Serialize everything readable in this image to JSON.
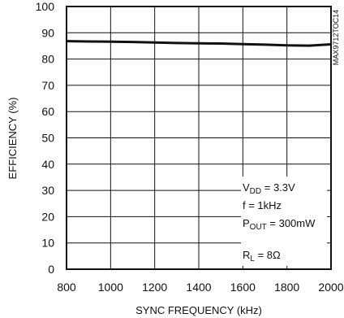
{
  "chart_data": {
    "type": "line",
    "title": "",
    "xlabel": "SYNC FREQUENCY (kHz)",
    "ylabel": "EFFICIENCY (%)",
    "xlim": [
      800,
      2000
    ],
    "ylim": [
      0,
      100
    ],
    "x_ticks": [
      "800",
      "1000",
      "1200",
      "1400",
      "1600",
      "1800",
      "2000"
    ],
    "y_ticks": [
      "0",
      "10",
      "20",
      "30",
      "40",
      "50",
      "60",
      "70",
      "80",
      "90",
      "100"
    ],
    "grid": true,
    "series": [
      {
        "x": [
          800,
          900,
          1000,
          1100,
          1200,
          1300,
          1400,
          1500,
          1600,
          1700,
          1800,
          1900,
          2000
        ],
        "values": [
          86.8,
          86.7,
          86.6,
          86.5,
          86.3,
          86.1,
          86.0,
          85.9,
          85.7,
          85.5,
          85.2,
          85.1,
          85.6
        ]
      }
    ],
    "annotations": {
      "vdd_main": "V",
      "vdd_sub": "DD",
      "vdd_rest": " = 3.3V",
      "f": "f = 1kHz",
      "pout_main": "P",
      "pout_sub": "OUT",
      "pout_rest": " = 300mW",
      "rl_main": "R",
      "rl_sub": "L",
      "rl_rest": " = 8Ω"
    },
    "code_label": "MAX9712TOC14",
    "colors": {
      "line": "#111111",
      "grid": "#111111",
      "background": "#ffffff"
    }
  }
}
